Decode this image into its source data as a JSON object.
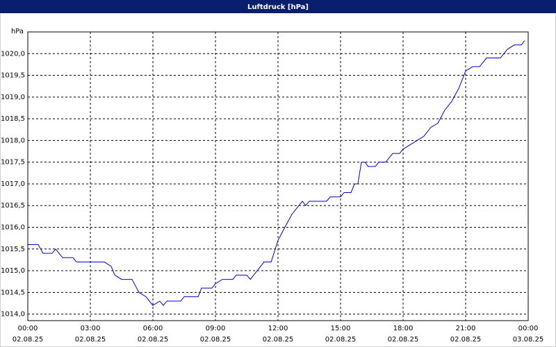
{
  "chart_data": {
    "type": "line",
    "title": "Luftdruck [hPa]",
    "y_unit": "hPa",
    "x": [
      0,
      0.5,
      0.73,
      1.17,
      1.33,
      1.67,
      2.17,
      2.33,
      3.67,
      4,
      4.17,
      4.5,
      5,
      5.33,
      5.67,
      5.83,
      6,
      6.33,
      6.5,
      6.67,
      7.33,
      7.5,
      8.17,
      8.33,
      8.83,
      9,
      9.33,
      9.83,
      10,
      10.5,
      10.67,
      11,
      11.33,
      11.67,
      12,
      12.33,
      12.67,
      13,
      13.17,
      13.33,
      13.5,
      14.33,
      14.5,
      15,
      15.17,
      15.5,
      15.67,
      15.83,
      16,
      16.17,
      16.33,
      16.67,
      16.83,
      17.17,
      17.33,
      17.5,
      17.83,
      18,
      18.33,
      18.67,
      19,
      19.33,
      19.67,
      20,
      20.33,
      20.67,
      21,
      21.33,
      21.67,
      22,
      22.67,
      23,
      23.33,
      23.67,
      23.83
    ],
    "series": [
      {
        "name": "Luftdruck",
        "color": "#0000c0",
        "values": [
          1015.6,
          1015.6,
          1015.4,
          1015.4,
          1015.5,
          1015.3,
          1015.3,
          1015.2,
          1015.2,
          1015.1,
          1014.9,
          1014.8,
          1014.8,
          1014.5,
          1014.4,
          1014.3,
          1014.2,
          1014.3,
          1014.2,
          1014.3,
          1014.3,
          1014.4,
          1014.4,
          1014.6,
          1014.6,
          1014.7,
          1014.8,
          1014.8,
          1014.9,
          1014.9,
          1014.8,
          1015.0,
          1015.2,
          1015.2,
          1015.7,
          1016.0,
          1016.3,
          1016.5,
          1016.6,
          1016.5,
          1016.6,
          1016.6,
          1016.7,
          1016.7,
          1016.8,
          1016.8,
          1017.0,
          1017.0,
          1017.5,
          1017.5,
          1017.4,
          1017.4,
          1017.5,
          1017.5,
          1017.6,
          1017.7,
          1017.7,
          1017.8,
          1017.9,
          1018.0,
          1018.1,
          1018.3,
          1018.4,
          1018.7,
          1018.9,
          1019.2,
          1019.6,
          1019.7,
          1019.7,
          1019.9,
          1019.9,
          1020.1,
          1020.2,
          1020.2,
          1020.3
        ]
      }
    ],
    "xlim": [
      0,
      24
    ],
    "xticks": [
      {
        "value": 0,
        "label": "00:00",
        "date": "02.08.25"
      },
      {
        "value": 3,
        "label": "03:00",
        "date": "02.08.25"
      },
      {
        "value": 6,
        "label": "06:00",
        "date": "02.08.25"
      },
      {
        "value": 9,
        "label": "09:00",
        "date": "02.08.25"
      },
      {
        "value": 12,
        "label": "12:00",
        "date": "02.08.25"
      },
      {
        "value": 15,
        "label": "15:00",
        "date": "02.08.25"
      },
      {
        "value": 18,
        "label": "18:00",
        "date": "02.08.25"
      },
      {
        "value": 21,
        "label": "21:00",
        "date": "02.08.25"
      },
      {
        "value": 24,
        "label": "00:00",
        "date": "03.08.25"
      }
    ],
    "ylim": [
      1013.85,
      1020.5
    ],
    "yticks": [
      {
        "value": 1014.0,
        "label": "1014,0"
      },
      {
        "value": 1014.5,
        "label": "1014,5"
      },
      {
        "value": 1015.0,
        "label": "1015,0"
      },
      {
        "value": 1015.5,
        "label": "1015,5"
      },
      {
        "value": 1016.0,
        "label": "1016,0"
      },
      {
        "value": 1016.5,
        "label": "1016,5"
      },
      {
        "value": 1017.0,
        "label": "1017,0"
      },
      {
        "value": 1017.5,
        "label": "1017,5"
      },
      {
        "value": 1018.0,
        "label": "1018,0"
      },
      {
        "value": 1018.5,
        "label": "1018,5"
      },
      {
        "value": 1019.0,
        "label": "1019,0"
      },
      {
        "value": 1019.5,
        "label": "1019,5"
      },
      {
        "value": 1020.0,
        "label": "1020,0"
      }
    ],
    "grid": true
  }
}
